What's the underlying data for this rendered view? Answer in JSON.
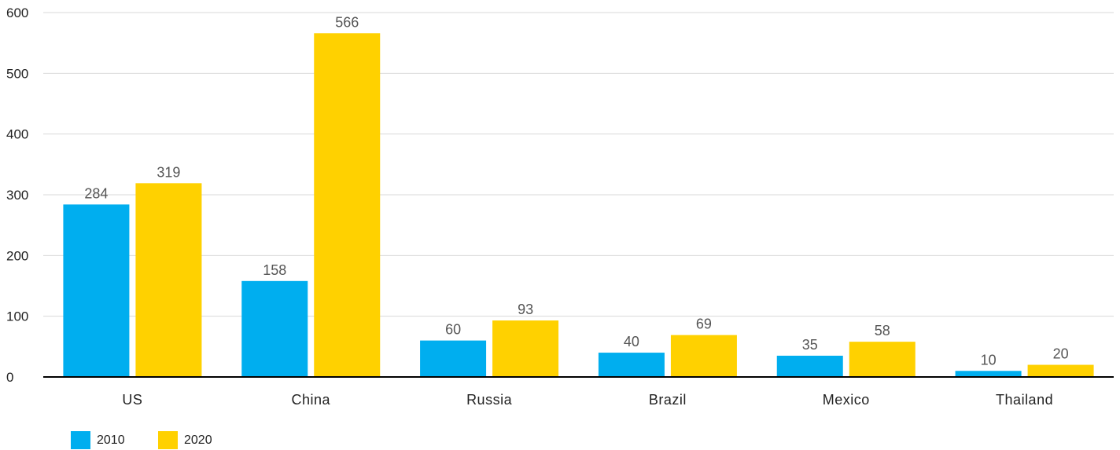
{
  "chart_data": {
    "type": "bar",
    "title": "",
    "xlabel": "",
    "ylabel": "",
    "categories": [
      "US",
      "China",
      "Russia",
      "Brazil",
      "Mexico",
      "Thailand"
    ],
    "series": [
      {
        "name": "2010",
        "values": [
          284,
          158,
          60,
          40,
          35,
          10
        ],
        "color": "#00AEEF"
      },
      {
        "name": "2020",
        "values": [
          319,
          566,
          93,
          69,
          58,
          20
        ],
        "color": "#FFD100"
      }
    ],
    "ylim": [
      0,
      600
    ],
    "yticks": [
      0,
      100,
      200,
      300,
      400,
      500,
      600
    ],
    "grid": true,
    "data_labels": true,
    "legend": {
      "position": "bottom-left"
    }
  },
  "colors": {
    "grid": "#d9d9d9",
    "axis": "#000000",
    "tick_text": "#222222",
    "data_label_text": "#555555"
  }
}
